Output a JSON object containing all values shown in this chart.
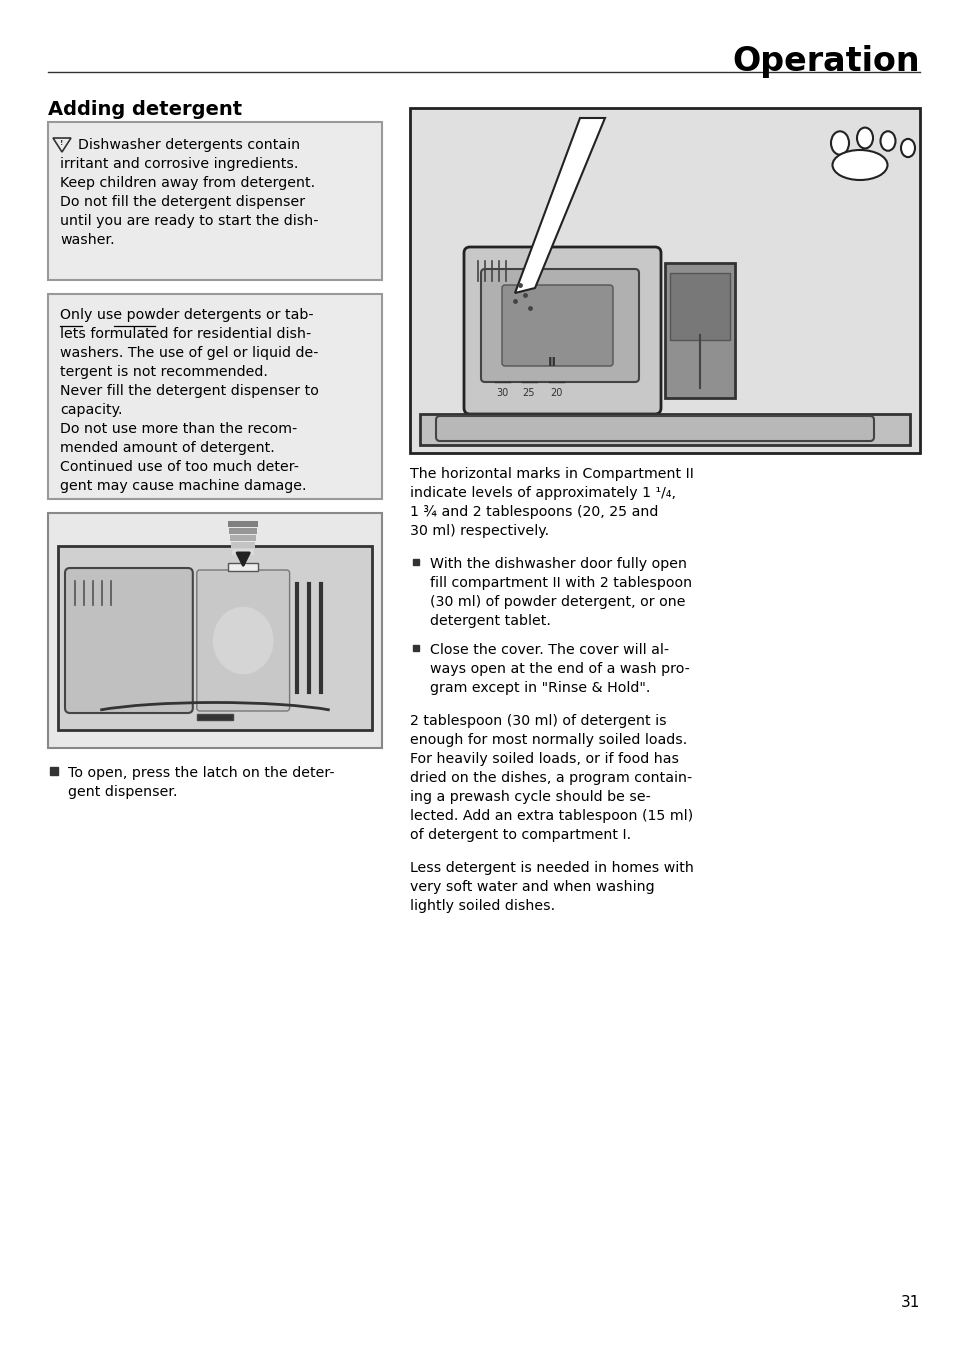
{
  "title": "Operation",
  "section_title": "Adding detergent",
  "warn_lines": [
    "Dishwasher detergents contain",
    "irritant and corrosive ingredients.",
    "Keep children away from detergent.",
    "Do not fill the detergent dispenser",
    "until you are ready to start the dish-",
    "washer."
  ],
  "info_lines": [
    "Only use powder detergents or tab-",
    "lets formulated for residential dish-",
    "washers. The use of gel or liquid de-",
    "tergent is not recommended.",
    "Never fill the detergent dispenser to",
    "capacity.",
    "Do not use more than the recom-",
    "mended amount of detergent.",
    "Continued use of too much deter-",
    "gent may cause machine damage."
  ],
  "right_para1_lines": [
    "The horizontal marks in Compartment II",
    "indicate levels of approximately 1 ¹/₄,",
    "1 ¾ and 2 tablespoons (20, 25 and",
    "30 ml) respectively."
  ],
  "bullet2_lines": [
    "With the dishwasher door fully open",
    "fill compartment II with 2 tablespoon",
    "(30 ml) of powder detergent, or one",
    "detergent tablet."
  ],
  "bullet3_lines": [
    "Close the cover. The cover will al-",
    "ways open at the end of a wash pro-",
    "gram except in \"Rinse & Hold\"."
  ],
  "para1_lines": [
    "2 tablespoon (30 ml) of detergent is",
    "enough for most normally soiled loads.",
    "For heavily soiled loads, or if food has",
    "dried on the dishes, a program contain-",
    "ing a prewash cycle should be se-",
    "lected. Add an extra tablespoon (15 ml)",
    "of detergent to compartment I."
  ],
  "para2_lines": [
    "Less detergent is needed in homes with",
    "very soft water and when washing",
    "lightly soiled dishes."
  ],
  "bullet1_lines": [
    "To open, press the latch on the deter-",
    "gent dispenser."
  ],
  "page_number": "31",
  "bg_color": "#ffffff",
  "box_bg": "#ebebeb",
  "box_border": "#999999",
  "text_color": "#000000",
  "title_color": "#000000",
  "line_color": "#000000",
  "img_bg": "#e0e0e0",
  "img_border": "#222222"
}
